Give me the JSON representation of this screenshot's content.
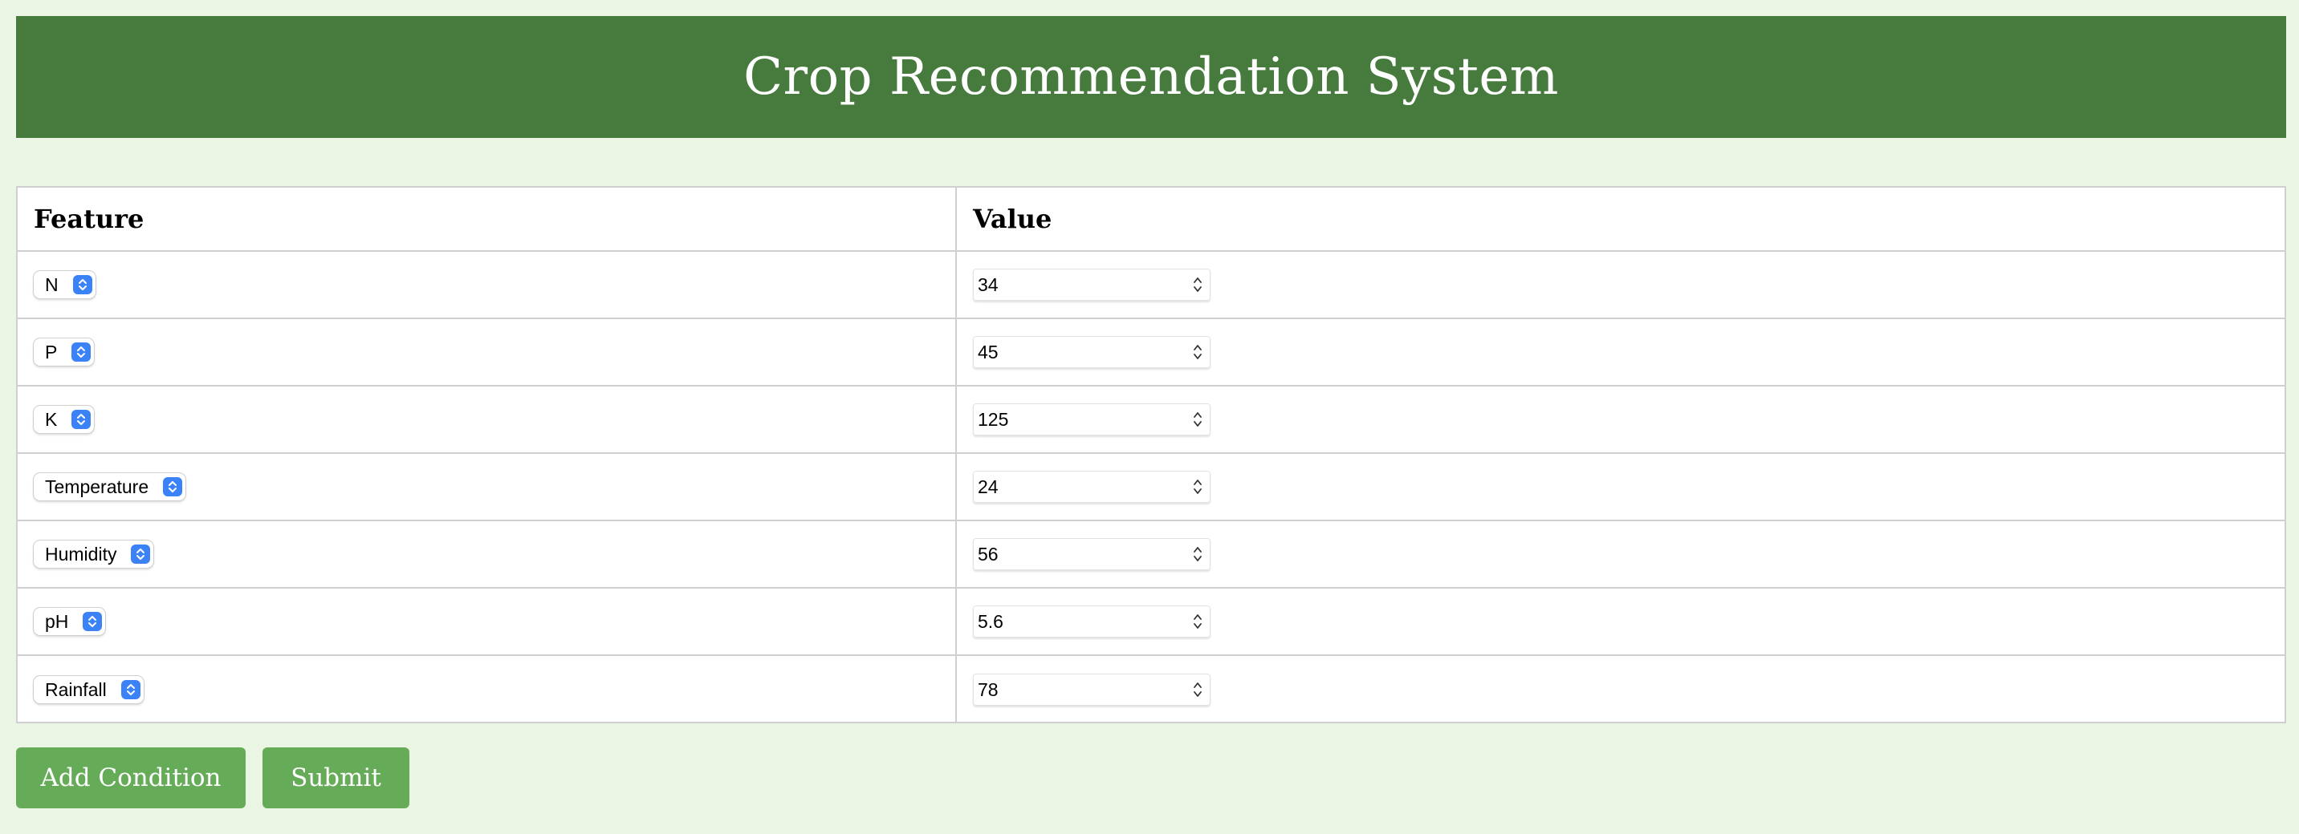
{
  "header": {
    "title": "Crop Recommendation System"
  },
  "table": {
    "columns": {
      "feature": "Feature",
      "value": "Value"
    },
    "rows": [
      {
        "feature": "N",
        "value": "34"
      },
      {
        "feature": "P",
        "value": "45"
      },
      {
        "feature": "K",
        "value": "125"
      },
      {
        "feature": "Temperature",
        "value": "24"
      },
      {
        "feature": "Humidity",
        "value": "56"
      },
      {
        "feature": "pH",
        "value": "5.6"
      },
      {
        "feature": "Rainfall",
        "value": "78"
      }
    ]
  },
  "actions": {
    "add_label": "Add Condition",
    "submit_label": "Submit"
  },
  "colors": {
    "header_bg": "#467b3d",
    "page_bg": "#ebf5e3",
    "button_bg": "#66ac58",
    "select_accent": "#3b82f6"
  },
  "icons": {
    "select_arrow": "chevron-up-down-icon",
    "spinner": "stepper-icon"
  }
}
